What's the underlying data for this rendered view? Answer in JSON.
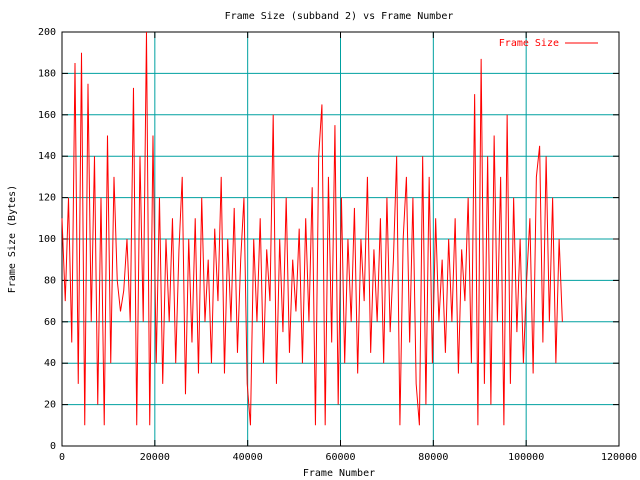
{
  "chart_data": {
    "type": "line",
    "title": "Frame Size (subband 2) vs Frame Number",
    "x_label": "Frame Number",
    "y_label": "Frame Size (Bytes)",
    "xlim": [
      0,
      120000
    ],
    "xticks": [
      0,
      20000,
      40000,
      60000,
      80000,
      100000,
      120000
    ],
    "ylim": [
      0,
      200
    ],
    "yticks": [
      0,
      20,
      40,
      60,
      80,
      100,
      120,
      140,
      160,
      180,
      200
    ],
    "grid": true,
    "legend": "top-right",
    "x": [
      0,
      700,
      1400,
      2100,
      2800,
      3500,
      4200,
      4900,
      5600,
      6300,
      7000,
      7700,
      8400,
      9100,
      9800,
      10500,
      11200,
      11900,
      12600,
      13300,
      14000,
      14700,
      15400,
      16100,
      16800,
      17500,
      18200,
      18900,
      19600,
      20300,
      21000,
      21700,
      22400,
      23100,
      23800,
      24500,
      25200,
      25900,
      26600,
      27300,
      28000,
      28700,
      29400,
      30100,
      30800,
      31500,
      32200,
      32900,
      33600,
      34300,
      35000,
      35700,
      36400,
      37100,
      37800,
      38500,
      39200,
      39900,
      40600,
      41300,
      42000,
      42700,
      43400,
      44100,
      44800,
      45500,
      46200,
      46900,
      47600,
      48300,
      49000,
      49700,
      50400,
      51100,
      51800,
      52500,
      53200,
      53900,
      54600,
      55300,
      56000,
      56700,
      57400,
      58100,
      58800,
      59500,
      60200,
      60900,
      61600,
      62300,
      63000,
      63700,
      64400,
      65100,
      65800,
      66500,
      67200,
      67900,
      68600,
      69300,
      70000,
      70700,
      71400,
      72100,
      72800,
      73500,
      74200,
      74900,
      75600,
      76300,
      77000,
      77700,
      78400,
      79100,
      79800,
      80500,
      81200,
      81900,
      82600,
      83300,
      84000,
      84700,
      85400,
      86100,
      86800,
      87500,
      88200,
      88900,
      89600,
      90300,
      91000,
      91700,
      92400,
      93100,
      93800,
      94500,
      95200,
      95900,
      96600,
      97300,
      98000,
      98700,
      99400,
      100100,
      100800,
      101500,
      102200,
      102900,
      103600,
      104300,
      105000,
      105700,
      106400,
      107100,
      107800
    ],
    "series": [
      {
        "name": "Frame Size",
        "color": "#ff0000",
        "values": [
          110,
          70,
          120,
          50,
          185,
          30,
          190,
          10,
          175,
          60,
          140,
          20,
          120,
          10,
          150,
          40,
          130,
          80,
          65,
          75,
          100,
          60,
          173,
          10,
          140,
          60,
          200,
          10,
          150,
          40,
          120,
          30,
          100,
          60,
          110,
          40,
          95,
          130,
          25,
          100,
          50,
          110,
          35,
          120,
          60,
          90,
          40,
          105,
          70,
          130,
          35,
          100,
          60,
          115,
          45,
          90,
          120,
          30,
          10,
          100,
          60,
          110,
          40,
          95,
          70,
          160,
          30,
          100,
          55,
          120,
          45,
          90,
          65,
          105,
          40,
          110,
          60,
          125,
          10,
          140,
          165,
          10,
          130,
          50,
          155,
          20,
          120,
          40,
          100,
          60,
          115,
          35,
          100,
          70,
          130,
          45,
          95,
          60,
          110,
          40,
          120,
          55,
          90,
          140,
          10,
          100,
          130,
          50,
          120,
          30,
          10,
          140,
          20,
          130,
          40,
          110,
          60,
          90,
          45,
          100,
          60,
          110,
          35,
          95,
          70,
          120,
          40,
          170,
          10,
          187,
          30,
          140,
          20,
          150,
          60,
          130,
          10,
          160,
          30,
          120,
          55,
          100,
          40,
          80,
          110,
          35,
          130,
          145,
          50,
          140,
          60,
          120,
          40,
          100,
          60
        ]
      }
    ]
  }
}
